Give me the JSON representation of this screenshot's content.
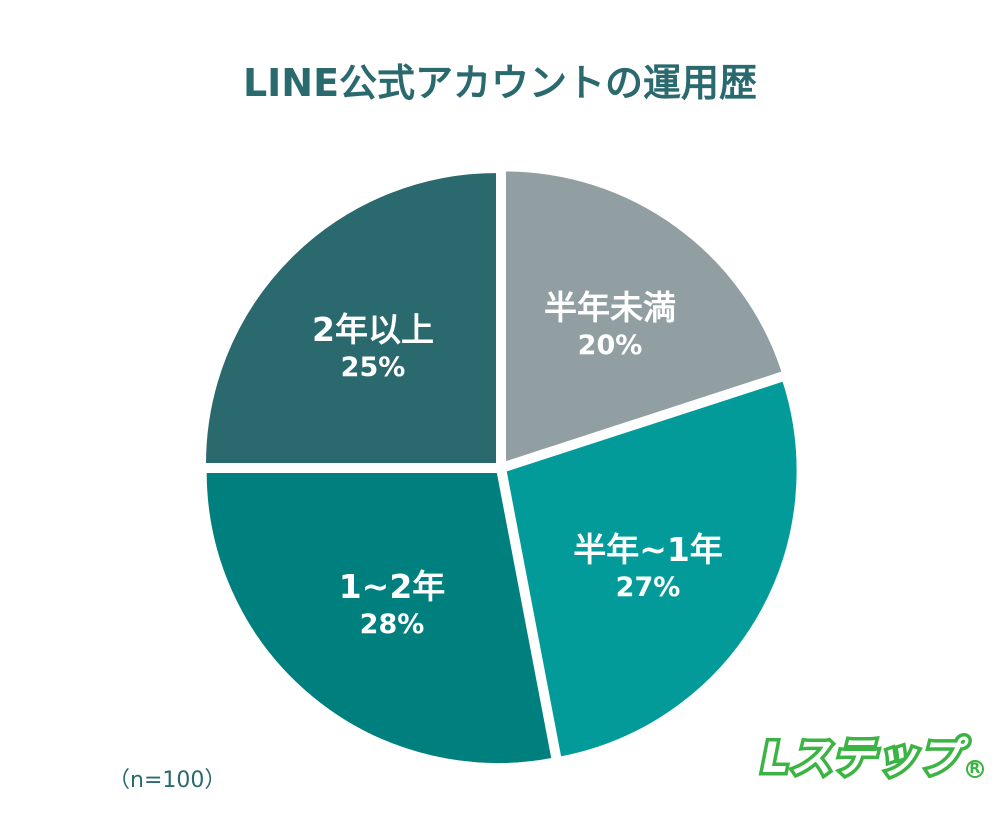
{
  "title": "LINE公式アカウントの運用歴",
  "note": "（n=100）",
  "logo": {
    "text": "Lステップ",
    "registered": "R",
    "color": "#3cb443"
  },
  "chart_data": {
    "type": "pie",
    "title": "LINE公式アカウントの運用歴",
    "sample_size": "n=100",
    "start_angle_deg": 0,
    "direction": "clockwise",
    "categories": [
      "半年未満",
      "半年~1年",
      "1~2年",
      "2年以上"
    ],
    "values": [
      20,
      27,
      28,
      25
    ],
    "unit": "%",
    "colors": [
      "#919fa3",
      "#039b9a",
      "#007f7f",
      "#2a6a6f"
    ],
    "slices": [
      {
        "label": "半年未満",
        "value": 20,
        "display": "20%",
        "color": "#919fa3"
      },
      {
        "label": "半年~1年",
        "value": 27,
        "display": "27%",
        "color": "#039b9a"
      },
      {
        "label": "1~2年",
        "value": 28,
        "display": "28%",
        "color": "#007f7f"
      },
      {
        "label": "2年以上",
        "value": 25,
        "display": "25%",
        "color": "#2a6a6f"
      }
    ],
    "legend": "none (labels inside slices)"
  }
}
